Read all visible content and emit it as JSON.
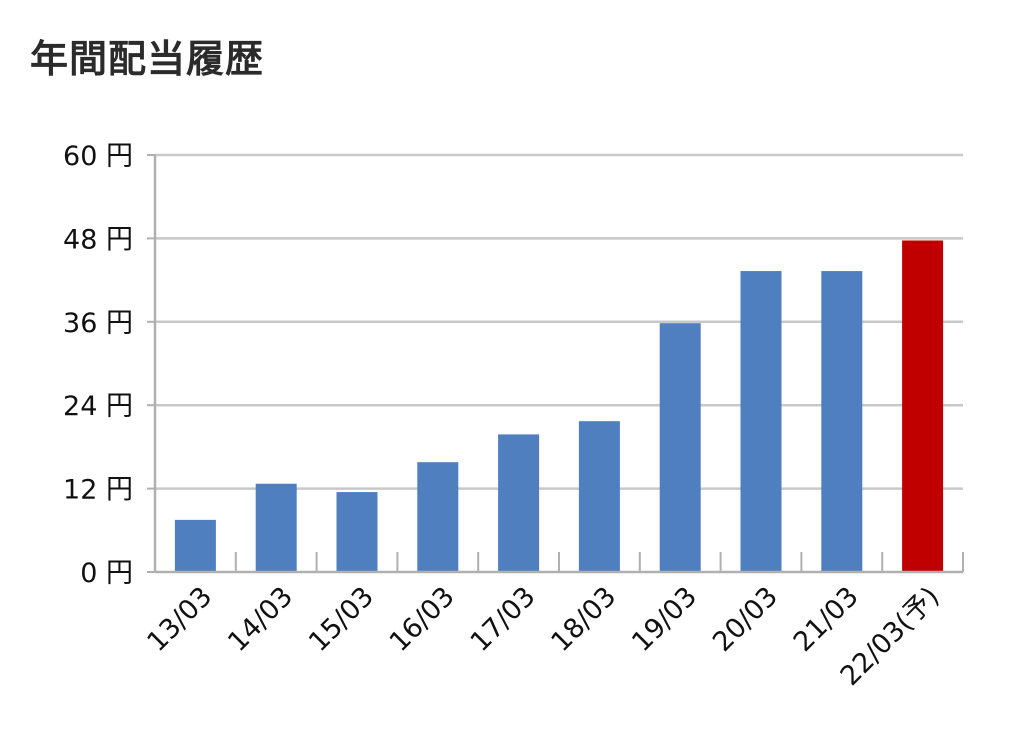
{
  "title": "年間配当履歴",
  "chart_data": {
    "type": "bar",
    "title": "年間配当履歴",
    "categories": [
      "13/03",
      "14/03",
      "15/03",
      "16/03",
      "17/03",
      "18/03",
      "19/03",
      "20/03",
      "21/03",
      "22/03(予)"
    ],
    "values": [
      7.5,
      12.7,
      11.5,
      15.8,
      19.8,
      21.7,
      35.8,
      43.3,
      43.3,
      47.7
    ],
    "ylim": [
      0,
      60
    ],
    "yticks": [
      0,
      12,
      24,
      36,
      48,
      60
    ],
    "ytick_labels": [
      "0 円",
      "12 円",
      "24 円",
      "36 円",
      "48 円",
      "60 円"
    ],
    "xlabel": "",
    "ylabel": "",
    "grid": true,
    "colors": {
      "actual": "#4f7fbe",
      "forecast": "#c00000",
      "grid": "#c8c8c8",
      "axis": "#b0b0b0"
    },
    "highlight_index": 9
  }
}
